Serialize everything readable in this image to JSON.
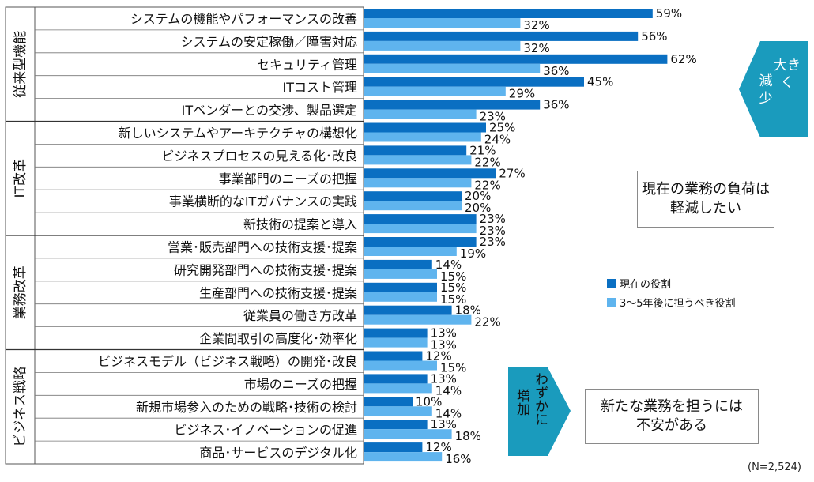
{
  "chart_data": {
    "type": "bar",
    "orientation": "horizontal",
    "note": "(N=2,524)",
    "groups": [
      {
        "label": "従来型機能",
        "count": 5
      },
      {
        "label": "IT改革",
        "count": 5
      },
      {
        "label": "業務改革",
        "count": 5
      },
      {
        "label": "ビジネス戦略",
        "count": 5
      }
    ],
    "categories": [
      "システムの機能やパフォーマンスの改善",
      "システムの安定稼働／障害対応",
      "セキュリティ管理",
      "ITコスト管理",
      "ITベンダーとの交渉、製品選定",
      "新しいシステムやアーキテクチャの構想化",
      "ビジネスプロセスの見える化･改良",
      "事業部門のニーズの把握",
      "事業横断的なITガバナンスの実践",
      "新技術の提案と導入",
      "営業･販売部門への技術支援･提案",
      "研究開発部門への技術支援･提案",
      "生産部門への技術支援･提案",
      "従業員の働き方改革",
      "企業間取引の高度化･効率化",
      "ビジネスモデル（ビジネス戦略）の開発･改良",
      "市場のニーズの把握",
      "新規市場参入のための戦略･技術の検討",
      "ビジネス･イノベーションの促進",
      "商品･サービスのデジタル化"
    ],
    "series": [
      {
        "name": "現在の役割",
        "color": "#0a6fc2",
        "values": [
          59,
          56,
          62,
          45,
          36,
          25,
          21,
          27,
          20,
          23,
          23,
          14,
          15,
          18,
          13,
          12,
          13,
          10,
          13,
          12
        ]
      },
      {
        "name": "3～5年後に担うべき役割",
        "color": "#5fb4ee",
        "values": [
          32,
          32,
          36,
          29,
          23,
          24,
          22,
          22,
          20,
          23,
          19,
          15,
          15,
          22,
          13,
          15,
          14,
          14,
          18,
          16
        ]
      }
    ],
    "value_suffix": "%",
    "annotations": {
      "decrease_arrow": "大きく減少",
      "increase_arrow": "わずかに増加",
      "decrease_box": "現在の業務の負荷は軽減したい",
      "increase_box": "新たな業務を担うには不安がある"
    }
  },
  "text": {
    "decrease_box_lines": [
      "現在の業務の負荷は",
      "軽減したい"
    ],
    "increase_box_lines": [
      "新たな業務を担うには",
      "不安がある"
    ],
    "decrease_arrow_cols": [
      "大き",
      "く",
      "減",
      "少"
    ],
    "increase_arrow_cols": [
      "わずかに",
      "増加"
    ]
  }
}
